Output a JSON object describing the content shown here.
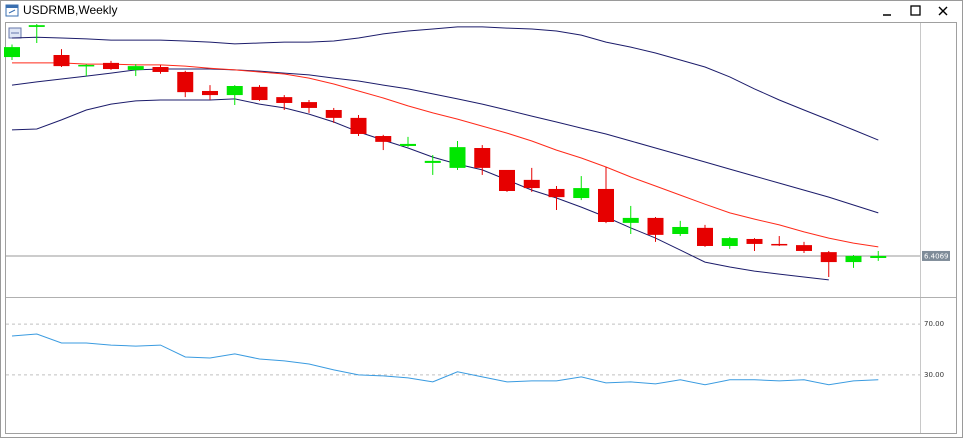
{
  "window": {
    "title": "USDRMB,Weekly"
  },
  "chart_data": [
    {
      "type": "candlestick",
      "open": [
        7.087,
        7.19,
        7.094,
        7.057,
        7.067,
        7.043,
        7.053,
        7.036,
        6.971,
        6.957,
        6.985,
        6.95,
        6.933,
        6.906,
        6.879,
        6.817,
        6.783,
        6.725,
        6.708,
        6.776,
        6.701,
        6.667,
        6.636,
        6.605,
        6.636,
        6.52,
        6.537,
        6.482,
        6.503,
        6.441,
        6.465,
        6.448,
        6.444,
        6.42,
        6.386,
        6.4
      ],
      "high": [
        7.13,
        7.2,
        7.114,
        7.063,
        7.074,
        7.063,
        7.06,
        7.04,
        6.991,
        6.991,
        6.991,
        6.957,
        6.94,
        6.913,
        6.889,
        6.821,
        6.814,
        6.752,
        6.8,
        6.786,
        6.701,
        6.708,
        6.646,
        6.68,
        6.711,
        6.578,
        6.54,
        6.527,
        6.513,
        6.472,
        6.468,
        6.475,
        6.455,
        6.424,
        6.41,
        6.424
      ],
      "low": [
        7.077,
        7.135,
        7.053,
        7.022,
        7.043,
        7.022,
        7.03,
        6.95,
        6.94,
        6.923,
        6.937,
        6.906,
        6.896,
        6.862,
        6.817,
        6.769,
        6.78,
        6.684,
        6.701,
        6.684,
        6.626,
        6.626,
        6.564,
        6.598,
        6.519,
        6.482,
        6.455,
        6.475,
        6.438,
        6.431,
        6.424,
        6.441,
        6.417,
        6.335,
        6.366,
        6.39
      ],
      "close": [
        7.121,
        7.196,
        7.056,
        7.06,
        7.046,
        7.056,
        7.036,
        6.967,
        6.957,
        6.988,
        6.94,
        6.93,
        6.913,
        6.879,
        6.824,
        6.797,
        6.79,
        6.732,
        6.779,
        6.708,
        6.629,
        6.639,
        6.608,
        6.639,
        6.523,
        6.537,
        6.479,
        6.506,
        6.441,
        6.468,
        6.448,
        6.445,
        6.424,
        6.386,
        6.407,
        6.4069
      ],
      "up_color": "#00e600",
      "down_color": "#e60000",
      "lines": [
        {
          "color": "#1c1c6b",
          "values": [
            7.152,
            7.155,
            7.152,
            7.149,
            7.145,
            7.145,
            7.145,
            7.142,
            7.138,
            7.132,
            7.135,
            7.138,
            7.138,
            7.142,
            7.152,
            7.166,
            7.176,
            7.183,
            7.19,
            7.19,
            7.186,
            7.183,
            7.176,
            7.162,
            7.138,
            7.121,
            7.101,
            7.077,
            7.053,
            7.019,
            6.978,
            6.94,
            6.906,
            6.872,
            6.838,
            6.803
          ]
        },
        {
          "color": "#1c1c6b",
          "values": [
            6.991,
            7.002,
            7.012,
            7.022,
            7.032,
            7.043,
            7.046,
            7.046,
            7.046,
            7.043,
            7.039,
            7.032,
            7.026,
            7.015,
            7.005,
            6.991,
            6.978,
            6.961,
            6.944,
            6.926,
            6.906,
            6.885,
            6.865,
            6.844,
            6.824,
            6.8,
            6.776,
            6.752,
            6.728,
            6.704,
            6.68,
            6.656,
            6.632,
            6.608,
            6.581,
            6.554
          ]
        },
        {
          "color": "#1c1c6b",
          "values": [
            6.838,
            6.841,
            6.872,
            6.906,
            6.926,
            6.937,
            6.94,
            6.94,
            6.94,
            6.944,
            6.926,
            6.913,
            6.892,
            6.865,
            6.831,
            6.803,
            6.776,
            6.745,
            6.721,
            6.701,
            6.667,
            6.632,
            6.605,
            6.574,
            6.54,
            6.503,
            6.468,
            6.427,
            6.386,
            6.369,
            6.355,
            6.345,
            6.335,
            6.325,
            null,
            null
          ]
        },
        {
          "color": "#ff2a1a",
          "values": [
            7.067,
            7.067,
            7.067,
            7.063,
            7.063,
            7.06,
            7.06,
            7.056,
            7.049,
            7.043,
            7.036,
            7.029,
            7.015,
            6.995,
            6.971,
            6.947,
            6.92,
            6.896,
            6.875,
            6.851,
            6.827,
            6.8,
            6.769,
            6.742,
            6.711,
            6.677,
            6.646,
            6.615,
            6.584,
            6.554,
            6.533,
            6.513,
            6.489,
            6.468,
            6.451,
            6.438
          ]
        }
      ],
      "ylim": [
        6.27,
        7.2
      ],
      "yticks": [
        6.4069
      ]
    },
    {
      "type": "line",
      "color": "#3a9be0",
      "values": [
        60.6,
        62.2,
        55.1,
        55.1,
        53.5,
        52.7,
        53.5,
        44.1,
        43.3,
        46.5,
        42.5,
        41.0,
        38.6,
        33.9,
        30.0,
        29.2,
        27.6,
        24.5,
        32.4,
        28.4,
        24.5,
        25.3,
        25.3,
        28.4,
        23.7,
        24.5,
        22.9,
        26.1,
        22.2,
        26.1,
        26.1,
        25.3,
        26.1,
        22.2,
        25.3,
        26.1
      ],
      "ylim": [
        -15,
        89
      ],
      "yticks": [
        {
          "value": 70,
          "label": "70.00"
        },
        {
          "value": 30,
          "label": "30.00"
        }
      ]
    }
  ]
}
